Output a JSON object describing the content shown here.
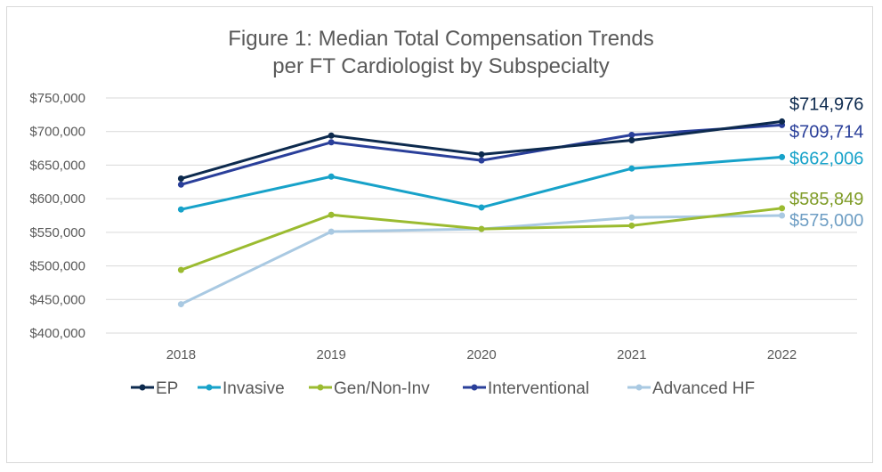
{
  "chart_data": {
    "type": "line",
    "title_line1": "Figure 1: Median Total Compensation Trends",
    "title_line2": "per FT Cardiologist by Subspecialty",
    "xlabel": "",
    "ylabel": "",
    "categories": [
      "2018",
      "2019",
      "2020",
      "2021",
      "2022"
    ],
    "ylim": [
      400000,
      750000
    ],
    "yticks": [
      400000,
      450000,
      500000,
      550000,
      600000,
      650000,
      700000,
      750000
    ],
    "ytick_labels": [
      "$400,000",
      "$450,000",
      "$500,000",
      "$550,000",
      "$600,000",
      "$650,000",
      "$700,000",
      "$750,000"
    ],
    "grid": true,
    "legend_position": "bottom",
    "series": [
      {
        "name": "EP",
        "color": "#0d2a4e",
        "values": [
          630000,
          694000,
          666000,
          687000,
          714976
        ],
        "end_label": "$714,976"
      },
      {
        "name": "Invasive",
        "color": "#17a2c9",
        "values": [
          584000,
          633000,
          587000,
          645000,
          662006
        ],
        "end_label": "$662,006"
      },
      {
        "name": "Gen/Non-Inv",
        "color": "#9bbb30",
        "values": [
          494000,
          576000,
          555000,
          560000,
          585849
        ],
        "end_label": "$585,849"
      },
      {
        "name": "Interventional",
        "color": "#2a3f9a",
        "values": [
          621000,
          684000,
          657000,
          695000,
          709714
        ],
        "end_label": "$709,714"
      },
      {
        "name": "Advanced HF",
        "color": "#a9c9e2",
        "values": [
          443000,
          551000,
          555000,
          572000,
          575000
        ],
        "end_label": "$575,000"
      }
    ]
  },
  "label_colors": {
    "EP": "#0d2a4e",
    "Invasive": "#17a2c9",
    "Gen/Non-Inv": "#7f9c27",
    "Interventional": "#2a3f9a",
    "Advanced HF": "#6e9ec4"
  }
}
